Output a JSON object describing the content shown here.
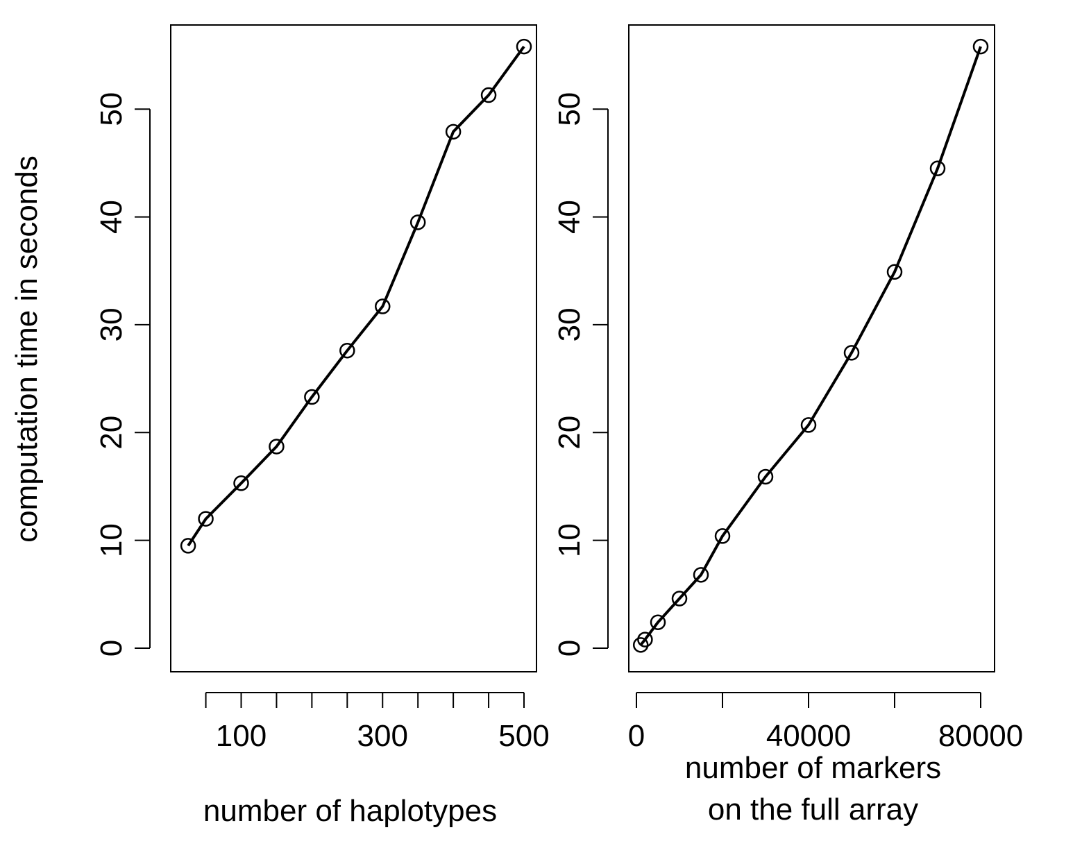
{
  "y_axis_label": "computation time in seconds",
  "chart_data": [
    {
      "type": "line",
      "markers": "open-circle",
      "xlabel": "number of haplotypes",
      "ylabel": "computation time in seconds",
      "xlim": [
        20,
        500
      ],
      "ylim": [
        0,
        56
      ],
      "x_ticks": [
        50,
        100,
        150,
        200,
        250,
        300,
        350,
        400,
        450,
        500
      ],
      "x_tick_labels": [
        {
          "value": 100,
          "label": "100"
        },
        {
          "value": 300,
          "label": "300"
        },
        {
          "value": 500,
          "label": "500"
        }
      ],
      "y_ticks": [
        0,
        10,
        20,
        30,
        40,
        50
      ],
      "y_tick_labels": [
        "0",
        "10",
        "20",
        "30",
        "40",
        "50"
      ],
      "x": [
        25,
        50,
        100,
        150,
        200,
        250,
        300,
        350,
        400,
        450,
        500
      ],
      "y": [
        9.5,
        12.0,
        15.3,
        18.7,
        23.3,
        27.6,
        31.7,
        39.5,
        47.9,
        51.3,
        55.8
      ],
      "grid": false
    },
    {
      "type": "line",
      "markers": "open-circle",
      "xlabel": [
        "number of markers",
        "on the full array"
      ],
      "ylabel": "computation time in seconds",
      "xlim": [
        0,
        80000
      ],
      "ylim": [
        0,
        56
      ],
      "x_ticks": [
        0,
        20000,
        40000,
        60000,
        80000
      ],
      "x_tick_labels": [
        {
          "value": 0,
          "label": "0"
        },
        {
          "value": 40000,
          "label": "40000"
        },
        {
          "value": 80000,
          "label": "80000"
        }
      ],
      "y_ticks": [
        0,
        10,
        20,
        30,
        40,
        50
      ],
      "y_tick_labels": [
        "0",
        "10",
        "20",
        "30",
        "40",
        "50"
      ],
      "x": [
        1000,
        2000,
        5000,
        10000,
        15000,
        20000,
        30000,
        40000,
        50000,
        60000,
        70000,
        80000
      ],
      "y": [
        0.3,
        0.8,
        2.4,
        4.6,
        6.8,
        10.4,
        15.9,
        20.7,
        27.4,
        34.9,
        44.5,
        55.8
      ],
      "grid": false
    }
  ]
}
